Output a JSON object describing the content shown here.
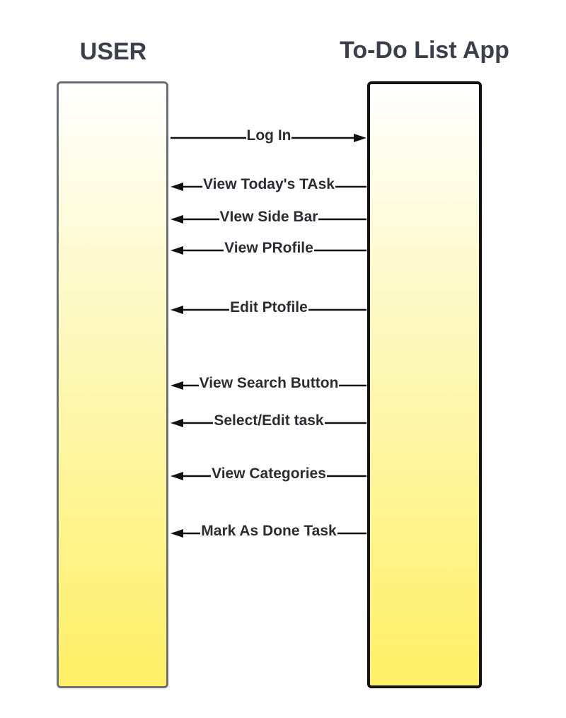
{
  "lanes": {
    "user": {
      "title": "USER"
    },
    "app": {
      "title": "To-Do List App"
    }
  },
  "messages": [
    {
      "label": "Log In",
      "direction": "user-to-app"
    },
    {
      "label": "View Today's TAsk",
      "direction": "app-to-user"
    },
    {
      "label": "VIew Side Bar",
      "direction": "app-to-user"
    },
    {
      "label": "View PRofile",
      "direction": "app-to-user"
    },
    {
      "label": "Edit Ptofile",
      "direction": "app-to-user"
    },
    {
      "label": "View Search Button",
      "direction": "app-to-user"
    },
    {
      "label": "Select/Edit task",
      "direction": "app-to-user"
    },
    {
      "label": "View Categories",
      "direction": "app-to-user"
    },
    {
      "label": "Mark As Done Task",
      "direction": "app-to-user"
    }
  ],
  "colors": {
    "lane_fill_top": "#ffffff",
    "lane_fill_bottom": "#fff066",
    "user_lane_border": "#6b6f78",
    "app_lane_border": "#111111",
    "arrow": "#111111",
    "title_text": "#3a3f4a"
  }
}
